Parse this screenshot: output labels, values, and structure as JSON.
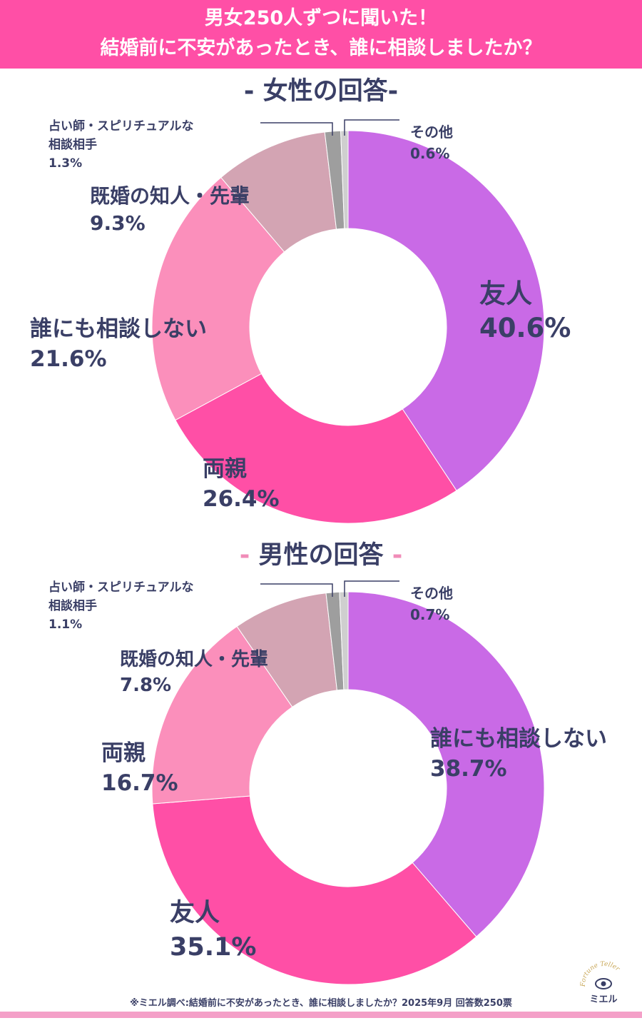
{
  "header": {
    "line1": "男女250人ずつに聞いた！",
    "line2": "結婚前に不安があったとき、誰に相談しましたか？"
  },
  "colors": {
    "header_bg": "#ff4fa6",
    "friend_purple": "#c96ae6",
    "parents_pink": "#ff4fa6",
    "nobody_light_pink": "#fb8fbb",
    "acquaintance_mauve": "#d3a4b3",
    "fortune_gray": "#9e9e9e",
    "other_light_gray": "#cfcfcf"
  },
  "female": {
    "title": "女性の回答",
    "dash_left": "-",
    "dash_right": "-"
  },
  "male": {
    "title": "男性の回答",
    "dash_left": "-",
    "dash_right": "-"
  },
  "chart_data": [
    {
      "type": "pie",
      "title": "女性の回答",
      "categories": [
        "友人",
        "両親",
        "誰にも相談しない",
        "既婚の知人・先輩",
        "占い師・スピリチュアルな相談相手",
        "その他"
      ],
      "values": [
        40.6,
        26.4,
        21.6,
        9.3,
        1.3,
        0.6
      ],
      "labels": [
        {
          "name": "友人",
          "value": "40.6%"
        },
        {
          "name": "両親",
          "value": "26.4%"
        },
        {
          "name": "誰にも相談しない",
          "value": "21.6%"
        },
        {
          "name": "既婚の知人・先輩",
          "value": "9.3%"
        },
        {
          "name1": "占い師・スピリチュアルな",
          "name2": "相談相手",
          "value": "1.3%"
        },
        {
          "name": "その他",
          "value": "0.6%"
        }
      ]
    },
    {
      "type": "pie",
      "title": "男性の回答",
      "categories": [
        "誰にも相談しない",
        "友人",
        "両親",
        "既婚の知人・先輩",
        "占い師・スピリチュアルな相談相手",
        "その他"
      ],
      "values": [
        38.7,
        35.1,
        16.7,
        7.8,
        1.1,
        0.7
      ],
      "labels": [
        {
          "name": "誰にも相談しない",
          "value": "38.7%"
        },
        {
          "name": "友人",
          "value": "35.1%"
        },
        {
          "name": "両親",
          "value": "16.7%"
        },
        {
          "name": "既婚の知人・先輩",
          "value": "7.8%"
        },
        {
          "name1": "占い師・スピリチュアルな",
          "name2": "相談相手",
          "value": "1.1%"
        },
        {
          "name": "その他",
          "value": "0.7%"
        }
      ]
    }
  ],
  "footer": {
    "note": "※ミエル調べ:結婚前に不安があったとき、誰に相談しましたか？2025年9月 回答数250票"
  },
  "logo": {
    "arc_text": "Fortune Teller",
    "name": "ミエル"
  }
}
